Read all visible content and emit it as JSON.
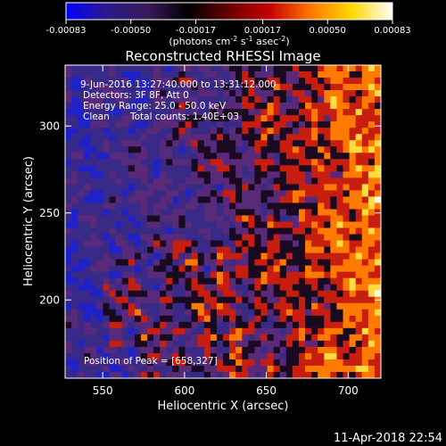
{
  "colorbar": {
    "ticks": [
      "-0.00083",
      "-0.00050",
      "-0.00017",
      "0.00017",
      "0.00050",
      "0.00083"
    ],
    "tick_values": [
      -0.00083,
      -0.0005,
      -0.00017,
      0.00017,
      0.0005,
      0.00083
    ],
    "range": [
      -0.00083,
      0.00083
    ],
    "unit_parts": {
      "open": "(photons cm",
      "cm_exp": "-2",
      "s_word": " s",
      "s_exp": "-1",
      "asec_word": " asec",
      "asec_exp": "-2",
      "close": ")"
    },
    "colors": [
      "#0000ff",
      "#2a1a8a",
      "#3a1a5a",
      "#000000",
      "#6a0000",
      "#c80000",
      "#ff7800",
      "#ffd800",
      "#ffffff"
    ]
  },
  "chart_data": {
    "type": "heatmap",
    "title": "Reconstructed RHESSI Image",
    "xlabel": "Heliocentric X (arcsec)",
    "ylabel": "Heliocentric Y (arcsec)",
    "xlim": [
      527,
      720
    ],
    "ylim": [
      155,
      335
    ],
    "x_ticks": [
      550,
      600,
      650,
      700
    ],
    "y_ticks": [
      200,
      250,
      300
    ],
    "x_tick_labels": [
      "550",
      "600",
      "650",
      "700"
    ],
    "y_tick_labels": [
      "200",
      "250",
      "300"
    ],
    "annotations": [
      "9-Jun-2016 13:27:40.000 to 13:31:12.000",
      "Detectors: 3F 8F, Att 0",
      "Energy Range: 25.0 - 50.0 keV",
      "Clean",
      "Total counts: 1.40E+03"
    ],
    "peak_label": "Position of Peak = [658,327]",
    "peak": [
      658,
      327
    ],
    "grid": false
  },
  "timestamp": "11-Apr-2018 22:54",
  "map_colors": {
    "low": "#3a2a88",
    "mid": "#5a2a7a",
    "dark": "#1a0a20",
    "red": "#c81e10",
    "orange": "#ff7a00",
    "yellow": "#ffdc40",
    "white": "#ffffe0",
    "blue": "#1e22c8"
  }
}
